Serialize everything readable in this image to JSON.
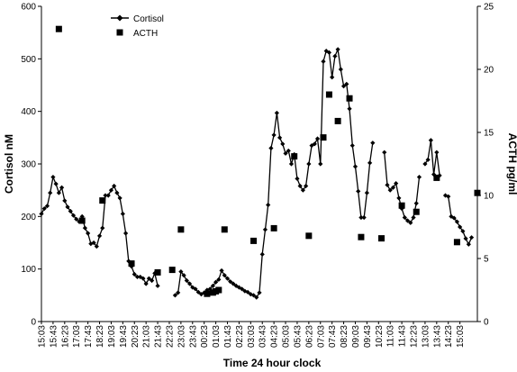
{
  "chart_data": {
    "type": "line",
    "title": "",
    "xlabel": "Time 24 hour clock",
    "ylabel": "Cortisol nM",
    "y2label": "ACTH pg/ml",
    "ylim": [
      0,
      600
    ],
    "y2lim": [
      0,
      25
    ],
    "yticks": [
      "0",
      "100",
      "200",
      "300",
      "400",
      "500",
      "600"
    ],
    "y2ticks": [
      "0",
      "5",
      "10",
      "15",
      "20",
      "25"
    ],
    "xticks": [
      "15:03",
      "15:43",
      "16:23",
      "17:03",
      "17:43",
      "18:23",
      "19:03",
      "19:43",
      "20:23",
      "21:03",
      "21:43",
      "22:23",
      "23:03",
      "23:43",
      "00:23",
      "01:03",
      "01:43",
      "02:23",
      "03:03",
      "03:43",
      "04:23",
      "05:03",
      "05:43",
      "06:23",
      "07:03",
      "07:43",
      "08:23",
      "09:03",
      "09:43",
      "10:23",
      "11:03",
      "11:43",
      "12:23",
      "13:03",
      "13:43",
      "14:23",
      "15:03"
    ],
    "legend": {
      "position": "top-left"
    },
    "grid": false,
    "series": [
      {
        "name": "Cortisol",
        "axis": "left",
        "marker": "diamond",
        "segments": [
          [
            [
              0,
              205
            ],
            [
              1,
              215
            ],
            [
              2,
              220
            ],
            [
              3,
              245
            ],
            [
              4,
              275
            ],
            [
              5,
              262
            ],
            [
              6,
              245
            ],
            [
              7,
              255
            ],
            [
              8,
              230
            ],
            [
              9,
              218
            ],
            [
              10,
              210
            ],
            [
              11,
              202
            ],
            [
              12,
              195
            ],
            [
              13,
              190
            ],
            [
              14,
              200
            ],
            [
              15,
              178
            ],
            [
              16,
              168
            ],
            [
              17,
              148
            ],
            [
              18,
              150
            ],
            [
              19,
              143
            ],
            [
              20,
              163
            ],
            [
              21,
              178
            ],
            [
              22,
              240
            ],
            [
              23,
              240
            ],
            [
              24,
              250
            ],
            [
              25,
              258
            ],
            [
              26,
              245
            ],
            [
              27,
              235
            ],
            [
              28,
              205
            ],
            [
              29,
              168
            ],
            [
              30,
              115
            ],
            [
              31,
              105
            ],
            [
              32,
              90
            ],
            [
              33,
              85
            ],
            [
              34,
              85
            ],
            [
              35,
              82
            ],
            [
              36,
              72
            ],
            [
              37,
              82
            ],
            [
              38,
              78
            ],
            [
              39,
              92
            ],
            [
              40,
              68
            ]
          ],
          [
            [
              46,
              50
            ],
            [
              47,
              55
            ],
            [
              48,
              95
            ],
            [
              49,
              88
            ],
            [
              50,
              78
            ],
            [
              51,
              72
            ],
            [
              52,
              65
            ],
            [
              53,
              62
            ],
            [
              54,
              56
            ],
            [
              55,
              52
            ],
            [
              56,
              55
            ],
            [
              57,
              60
            ],
            [
              58,
              62
            ],
            [
              59,
              68
            ],
            [
              60,
              75
            ],
            [
              61,
              80
            ],
            [
              62,
              97
            ],
            [
              63,
              88
            ],
            [
              64,
              82
            ],
            [
              65,
              76
            ],
            [
              66,
              72
            ],
            [
              67,
              68
            ],
            [
              68,
              65
            ],
            [
              69,
              62
            ],
            [
              70,
              58
            ],
            [
              71,
              56
            ],
            [
              72,
              52
            ],
            [
              73,
              50
            ],
            [
              74,
              46
            ],
            [
              75,
              55
            ],
            [
              76,
              128
            ],
            [
              77,
              175
            ],
            [
              78,
              222
            ],
            [
              79,
              330
            ],
            [
              80,
              355
            ],
            [
              81,
              397
            ],
            [
              82,
              350
            ],
            [
              83,
              338
            ],
            [
              84,
              320
            ],
            [
              85,
              325
            ],
            [
              86,
              300
            ],
            [
              87,
              318
            ],
            [
              88,
              272
            ],
            [
              89,
              258
            ],
            [
              90,
              250
            ],
            [
              91,
              258
            ],
            [
              92,
              300
            ],
            [
              93,
              335
            ],
            [
              94,
              338
            ],
            [
              95,
              348
            ],
            [
              96,
              300
            ],
            [
              97,
              495
            ],
            [
              98,
              515
            ],
            [
              99,
              512
            ],
            [
              100,
              465
            ],
            [
              101,
              505
            ],
            [
              102,
              518
            ],
            [
              103,
              480
            ],
            [
              104,
              448
            ],
            [
              105,
              452
            ],
            [
              106,
              405
            ],
            [
              107,
              335
            ],
            [
              108,
              295
            ],
            [
              109,
              248
            ],
            [
              110,
              198
            ],
            [
              111,
              198
            ],
            [
              112,
              245
            ],
            [
              113,
              302
            ],
            [
              114,
              340
            ]
          ],
          [
            [
              118,
              322
            ],
            [
              119,
              260
            ],
            [
              120,
              250
            ],
            [
              121,
              255
            ],
            [
              122,
              263
            ],
            [
              123,
              235
            ],
            [
              124,
              215
            ],
            [
              125,
              198
            ],
            [
              126,
              192
            ],
            [
              127,
              188
            ],
            [
              128,
              198
            ],
            [
              129,
              225
            ],
            [
              130,
              275
            ]
          ],
          [
            [
              132,
              300
            ],
            [
              133,
              308
            ],
            [
              134,
              345
            ],
            [
              135,
              280
            ],
            [
              136,
              322
            ],
            [
              137,
              278
            ]
          ],
          [
            [
              139,
              240
            ],
            [
              140,
              238
            ],
            [
              141,
              200
            ],
            [
              142,
              197
            ],
            [
              143,
              190
            ],
            [
              144,
              180
            ],
            [
              145,
              172
            ],
            [
              146,
              158
            ],
            [
              147,
              147
            ],
            [
              148,
              160
            ]
          ]
        ]
      },
      {
        "name": "ACTH",
        "axis": "right",
        "marker": "square",
        "points": [
          [
            6,
            23.2
          ],
          [
            14,
            8.0
          ],
          [
            21,
            9.6
          ],
          [
            31,
            4.6
          ],
          [
            40,
            3.9
          ],
          [
            45,
            4.1
          ],
          [
            60,
            2.4
          ],
          [
            61,
            2.5
          ],
          [
            59,
            2.3
          ],
          [
            57,
            2.2
          ],
          [
            48,
            7.3
          ],
          [
            63,
            7.3
          ],
          [
            73,
            6.4
          ],
          [
            80,
            7.4
          ],
          [
            87,
            13.1
          ],
          [
            92,
            6.8
          ],
          [
            97,
            14.6
          ],
          [
            106,
            17.7
          ],
          [
            102,
            15.9
          ],
          [
            99,
            18.0
          ],
          [
            110,
            6.7
          ],
          [
            117,
            6.6
          ],
          [
            124,
            9.2
          ],
          [
            129,
            8.7
          ],
          [
            136,
            11.4
          ],
          [
            143,
            6.3
          ],
          [
            150,
            10.2
          ]
        ]
      }
    ],
    "x_count": 151
  }
}
